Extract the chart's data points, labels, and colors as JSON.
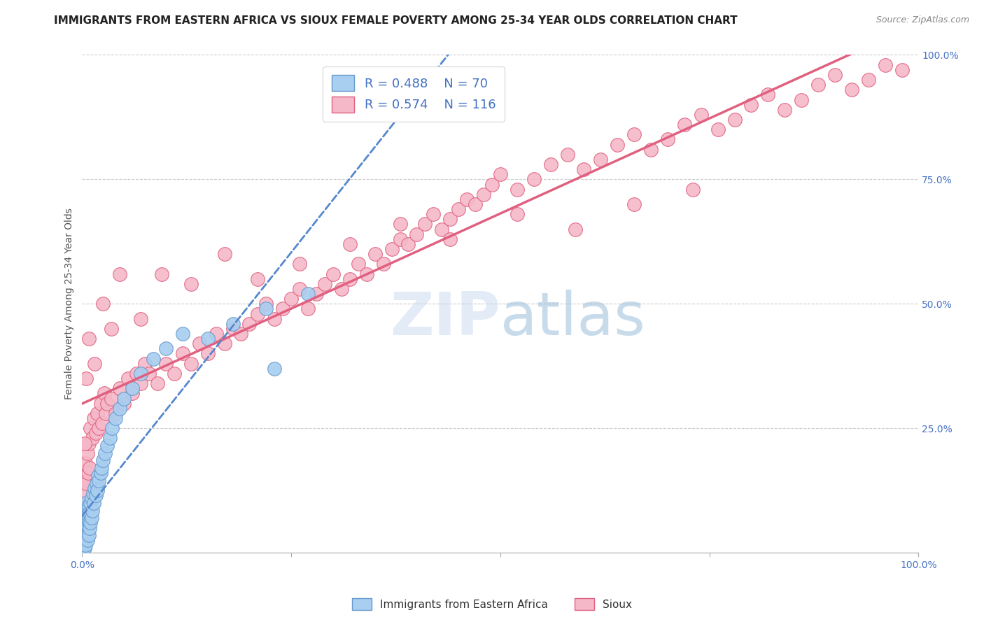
{
  "title": "IMMIGRANTS FROM EASTERN AFRICA VS SIOUX FEMALE POVERTY AMONG 25-34 YEAR OLDS CORRELATION CHART",
  "source": "Source: ZipAtlas.com",
  "ylabel": "Female Poverty Among 25-34 Year Olds",
  "blue_label": "Immigrants from Eastern Africa",
  "pink_label": "Sioux",
  "blue_R": "0.488",
  "blue_N": "70",
  "pink_R": "0.574",
  "pink_N": "116",
  "blue_color": "#A8CEF0",
  "pink_color": "#F5B8C8",
  "blue_edge_color": "#6699CC",
  "pink_edge_color": "#E06080",
  "blue_line_color": "#5588CC",
  "pink_line_color": "#E06080",
  "watermark": "ZIPatlas",
  "background_color": "#FFFFFF",
  "grid_color": "#CCCCCC",
  "title_fontsize": 11,
  "label_fontsize": 10,
  "tick_fontsize": 10,
  "legend_fontsize": 13,
  "blue_scatter_x": [
    0.001,
    0.001,
    0.001,
    0.001,
    0.002,
    0.002,
    0.002,
    0.002,
    0.002,
    0.002,
    0.002,
    0.003,
    0.003,
    0.003,
    0.003,
    0.003,
    0.003,
    0.004,
    0.004,
    0.004,
    0.004,
    0.004,
    0.005,
    0.005,
    0.005,
    0.005,
    0.006,
    0.006,
    0.006,
    0.007,
    0.007,
    0.007,
    0.008,
    0.008,
    0.008,
    0.009,
    0.009,
    0.01,
    0.01,
    0.011,
    0.011,
    0.012,
    0.013,
    0.014,
    0.015,
    0.016,
    0.017,
    0.018,
    0.019,
    0.02,
    0.022,
    0.023,
    0.025,
    0.027,
    0.03,
    0.033,
    0.036,
    0.04,
    0.045,
    0.05,
    0.06,
    0.07,
    0.085,
    0.1,
    0.12,
    0.15,
    0.18,
    0.22,
    0.27,
    0.23
  ],
  "blue_scatter_y": [
    0.02,
    0.03,
    0.04,
    0.015,
    0.01,
    0.025,
    0.035,
    0.05,
    0.015,
    0.06,
    0.07,
    0.02,
    0.04,
    0.055,
    0.065,
    0.08,
    0.01,
    0.03,
    0.05,
    0.07,
    0.09,
    0.015,
    0.035,
    0.06,
    0.08,
    0.1,
    0.025,
    0.055,
    0.075,
    0.04,
    0.065,
    0.09,
    0.035,
    0.06,
    0.095,
    0.05,
    0.08,
    0.06,
    0.1,
    0.07,
    0.11,
    0.085,
    0.12,
    0.1,
    0.13,
    0.115,
    0.14,
    0.125,
    0.155,
    0.145,
    0.16,
    0.17,
    0.185,
    0.2,
    0.215,
    0.23,
    0.25,
    0.27,
    0.29,
    0.31,
    0.33,
    0.36,
    0.39,
    0.41,
    0.44,
    0.43,
    0.46,
    0.49,
    0.52,
    0.37
  ],
  "pink_scatter_x": [
    0.001,
    0.002,
    0.003,
    0.004,
    0.005,
    0.006,
    0.007,
    0.008,
    0.009,
    0.01,
    0.012,
    0.014,
    0.016,
    0.018,
    0.02,
    0.022,
    0.024,
    0.026,
    0.028,
    0.03,
    0.035,
    0.04,
    0.045,
    0.05,
    0.055,
    0.06,
    0.065,
    0.07,
    0.075,
    0.08,
    0.09,
    0.1,
    0.11,
    0.12,
    0.13,
    0.14,
    0.15,
    0.16,
    0.17,
    0.18,
    0.19,
    0.2,
    0.21,
    0.22,
    0.23,
    0.24,
    0.25,
    0.26,
    0.27,
    0.28,
    0.29,
    0.3,
    0.31,
    0.32,
    0.33,
    0.34,
    0.35,
    0.36,
    0.37,
    0.38,
    0.39,
    0.4,
    0.41,
    0.42,
    0.43,
    0.44,
    0.45,
    0.46,
    0.47,
    0.48,
    0.49,
    0.5,
    0.52,
    0.54,
    0.56,
    0.58,
    0.6,
    0.62,
    0.64,
    0.66,
    0.68,
    0.7,
    0.72,
    0.74,
    0.76,
    0.78,
    0.8,
    0.82,
    0.84,
    0.86,
    0.88,
    0.9,
    0.92,
    0.94,
    0.96,
    0.98,
    0.003,
    0.005,
    0.008,
    0.015,
    0.025,
    0.035,
    0.045,
    0.07,
    0.095,
    0.13,
    0.17,
    0.21,
    0.26,
    0.32,
    0.38,
    0.44,
    0.52,
    0.59,
    0.66,
    0.73
  ],
  "pink_scatter_y": [
    0.1,
    0.15,
    0.12,
    0.18,
    0.14,
    0.2,
    0.16,
    0.22,
    0.17,
    0.25,
    0.23,
    0.27,
    0.24,
    0.28,
    0.25,
    0.3,
    0.26,
    0.32,
    0.28,
    0.3,
    0.31,
    0.28,
    0.33,
    0.3,
    0.35,
    0.32,
    0.36,
    0.34,
    0.38,
    0.36,
    0.34,
    0.38,
    0.36,
    0.4,
    0.38,
    0.42,
    0.4,
    0.44,
    0.42,
    0.45,
    0.44,
    0.46,
    0.48,
    0.5,
    0.47,
    0.49,
    0.51,
    0.53,
    0.49,
    0.52,
    0.54,
    0.56,
    0.53,
    0.55,
    0.58,
    0.56,
    0.6,
    0.58,
    0.61,
    0.63,
    0.62,
    0.64,
    0.66,
    0.68,
    0.65,
    0.67,
    0.69,
    0.71,
    0.7,
    0.72,
    0.74,
    0.76,
    0.73,
    0.75,
    0.78,
    0.8,
    0.77,
    0.79,
    0.82,
    0.84,
    0.81,
    0.83,
    0.86,
    0.88,
    0.85,
    0.87,
    0.9,
    0.92,
    0.89,
    0.91,
    0.94,
    0.96,
    0.93,
    0.95,
    0.98,
    0.97,
    0.22,
    0.35,
    0.43,
    0.38,
    0.5,
    0.45,
    0.56,
    0.47,
    0.56,
    0.54,
    0.6,
    0.55,
    0.58,
    0.62,
    0.66,
    0.63,
    0.68,
    0.65,
    0.7,
    0.73
  ]
}
